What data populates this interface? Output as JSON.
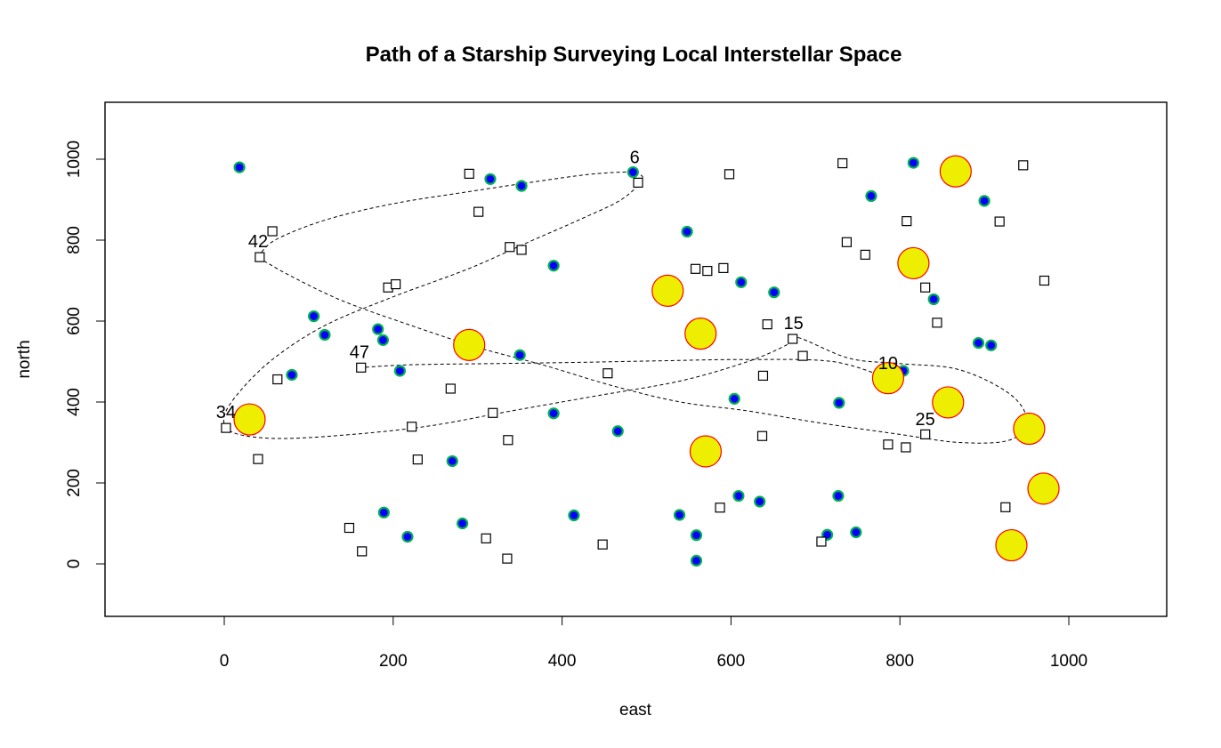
{
  "chart_data": {
    "type": "scatter",
    "title": "Path of a Starship Surveying Local Interstellar Space",
    "xlabel": "east",
    "ylabel": "north",
    "xlim": [
      -140,
      1120
    ],
    "ylim": [
      -130,
      1140
    ],
    "xticks": [
      0,
      200,
      400,
      600,
      800,
      1000
    ],
    "yticks": [
      0,
      200,
      400,
      600,
      800,
      1000
    ],
    "grid": false,
    "colors": {
      "dot_fill": "#0000ff",
      "dot_edge": "#00b050",
      "star_fill": "#eeee00",
      "star_edge": "#ff0000",
      "square_edge": "#000000",
      "path": "#000000"
    },
    "series": [
      {
        "marker": "filled-circle",
        "points": [
          [
            18,
            980
          ],
          [
            315,
            951
          ],
          [
            352,
            934
          ],
          [
            484,
            968
          ],
          [
            766,
            909
          ],
          [
            816,
            991
          ],
          [
            900,
            897
          ],
          [
            548,
            821
          ],
          [
            390,
            737
          ],
          [
            612,
            696
          ],
          [
            651,
            671
          ],
          [
            840,
            654
          ],
          [
            106,
            612
          ],
          [
            119,
            566
          ],
          [
            182,
            580
          ],
          [
            188,
            553
          ],
          [
            80,
            467
          ],
          [
            208,
            477
          ],
          [
            350,
            516
          ],
          [
            390,
            372
          ],
          [
            466,
            328
          ],
          [
            604,
            408
          ],
          [
            728,
            398
          ],
          [
            804,
            477
          ],
          [
            893,
            546
          ],
          [
            908,
            540
          ],
          [
            270,
            254
          ],
          [
            189,
            127
          ],
          [
            217,
            67
          ],
          [
            282,
            100
          ],
          [
            414,
            120
          ],
          [
            539,
            121
          ],
          [
            559,
            71
          ],
          [
            559,
            8
          ],
          [
            609,
            168
          ],
          [
            634,
            154
          ],
          [
            727,
            168
          ],
          [
            748,
            78
          ],
          [
            714,
            72
          ]
        ]
      },
      {
        "marker": "open-square",
        "points": [
          [
            290,
            964
          ],
          [
            301,
            870
          ],
          [
            338,
            783
          ],
          [
            352,
            776
          ],
          [
            490,
            942
          ],
          [
            598,
            963
          ],
          [
            732,
            990
          ],
          [
            946,
            985
          ],
          [
            808,
            847
          ],
          [
            918,
            846
          ],
          [
            737,
            795
          ],
          [
            759,
            764
          ],
          [
            971,
            700
          ],
          [
            830,
            683
          ],
          [
            844,
            596
          ],
          [
            57,
            822
          ],
          [
            42,
            758
          ],
          [
            194,
            683
          ],
          [
            203,
            691
          ],
          [
            558,
            729
          ],
          [
            572,
            724
          ],
          [
            591,
            731
          ],
          [
            643,
            592
          ],
          [
            673,
            556
          ],
          [
            685,
            514
          ],
          [
            638,
            465
          ],
          [
            454,
            471
          ],
          [
            268,
            433
          ],
          [
            318,
            373
          ],
          [
            222,
            339
          ],
          [
            229,
            258
          ],
          [
            336,
            306
          ],
          [
            63,
            456
          ],
          [
            162,
            485
          ],
          [
            2,
            336
          ],
          [
            40,
            259
          ],
          [
            148,
            89
          ],
          [
            163,
            31
          ],
          [
            310,
            63
          ],
          [
            335,
            13
          ],
          [
            448,
            48
          ],
          [
            587,
            139
          ],
          [
            637,
            316
          ],
          [
            786,
            295
          ],
          [
            807,
            288
          ],
          [
            830,
            320
          ],
          [
            707,
            55
          ],
          [
            925,
            140
          ]
        ]
      },
      {
        "marker": "large-circle",
        "points": [
          [
            866,
            970
          ],
          [
            816,
            743
          ],
          [
            525,
            675
          ],
          [
            564,
            569
          ],
          [
            290,
            541
          ],
          [
            30,
            357
          ],
          [
            786,
            459
          ],
          [
            857,
            399
          ],
          [
            953,
            334
          ],
          [
            570,
            278
          ],
          [
            970,
            186
          ],
          [
            932,
            46
          ]
        ]
      }
    ],
    "path_labels": [
      {
        "text": "6",
        "x": 486,
        "y": 968
      },
      {
        "text": "42",
        "x": 40,
        "y": 760
      },
      {
        "text": "15",
        "x": 674,
        "y": 558
      },
      {
        "text": "47",
        "x": 160,
        "y": 487
      },
      {
        "text": "10",
        "x": 786,
        "y": 459
      },
      {
        "text": "34",
        "x": 2,
        "y": 338
      },
      {
        "text": "25",
        "x": 830,
        "y": 321
      }
    ],
    "path": [
      [
        40,
        758
      ],
      [
        60,
        800
      ],
      [
        120,
        850
      ],
      [
        200,
        890
      ],
      [
        290,
        920
      ],
      [
        370,
        945
      ],
      [
        430,
        962
      ],
      [
        470,
        968
      ],
      [
        486,
        966
      ],
      [
        495,
        950
      ],
      [
        470,
        900
      ],
      [
        420,
        850
      ],
      [
        360,
        795
      ],
      [
        290,
        730
      ],
      [
        200,
        660
      ],
      [
        120,
        590
      ],
      [
        60,
        510
      ],
      [
        20,
        430
      ],
      [
        0,
        365
      ],
      [
        10,
        325
      ],
      [
        60,
        310
      ],
      [
        140,
        318
      ],
      [
        240,
        340
      ],
      [
        340,
        378
      ],
      [
        440,
        415
      ],
      [
        540,
        452
      ],
      [
        620,
        500
      ],
      [
        665,
        540
      ],
      [
        678,
        560
      ],
      [
        740,
        508
      ],
      [
        800,
        495
      ],
      [
        870,
        480
      ],
      [
        930,
        420
      ],
      [
        950,
        355
      ],
      [
        930,
        306
      ],
      [
        870,
        300
      ],
      [
        800,
        320
      ],
      [
        700,
        350
      ],
      [
        620,
        378
      ],
      [
        540,
        400
      ],
      [
        460,
        440
      ],
      [
        380,
        490
      ],
      [
        300,
        535
      ],
      [
        220,
        590
      ],
      [
        140,
        650
      ],
      [
        80,
        710
      ],
      [
        50,
        745
      ],
      [
        40,
        758
      ]
    ],
    "path2": [
      [
        160,
        485
      ],
      [
        220,
        492
      ],
      [
        320,
        495
      ],
      [
        420,
        498
      ],
      [
        520,
        502
      ],
      [
        620,
        505
      ],
      [
        720,
        500
      ],
      [
        786,
        459
      ]
    ]
  }
}
